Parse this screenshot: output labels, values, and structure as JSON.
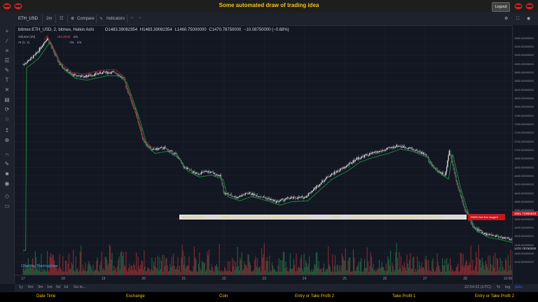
{
  "app": {
    "title": "Some automated draw of trading idea",
    "logout_label": "Logout"
  },
  "toolbar": {
    "symbol": "ETH_USD",
    "interval": "2m",
    "compare_label": "Compare",
    "indicators_label": "Indicators"
  },
  "legend": {
    "main": "bitmex:ETH_USD, 2, bitmex, Heikin Ashi",
    "open": "O1483.39082354",
    "high": "H1483.39082354",
    "low": "L1460.75000000",
    "close": "C1470.78750000",
    "change": "−10.08750000 (−0.68%)",
    "volume_label": "Volume (20)",
    "volume_value": "194.4030",
    "volume_na": "n/a",
    "ai_label": "AI (1, 1)",
    "ai_na1": "n/a",
    "ai_na2": "n/a"
  },
  "banner": {
    "seg1": "Wait till flip 1800 !",
    "seg2": "DRAW just when: price is above strong angle line and AI line is green",
    "seg3": "OR",
    "seg4": "draw shorts just when price still below strong angle line and AI line is red",
    "seg5": "THEN See the magic!!"
  },
  "price_axis": {
    "ticks": [
      "1960.00000000",
      "1940.00000000",
      "1920.00000000",
      "1900.00000000",
      "1880.00000000",
      "1860.00000000",
      "1840.00000000",
      "1820.00000000",
      "1800.00000000",
      "1780.00000000",
      "1760.00000000",
      "1740.00000000",
      "1720.00000000",
      "1700.00000000",
      "1680.00000000",
      "1660.00000000",
      "1640.00000000",
      "1620.00000000",
      "1600.00000000",
      "1580.00000000",
      "1560.00000000",
      "1540.00000000",
      "1520.00000000",
      "1500.00000000",
      "1480.00000000",
      "1460.00000000",
      "1440.00000000"
    ],
    "banner_price": "1551.71984848",
    "current_price": "1470.78750000"
  },
  "time_axis": {
    "labels": [
      "17",
      "18",
      "19",
      "20",
      "21",
      "22",
      "23",
      "24",
      "25",
      "26",
      "27",
      "28",
      "10:00"
    ]
  },
  "bottom": {
    "ranges": [
      "1y",
      "6m",
      "3m",
      "1m",
      "5d",
      "1d",
      "Go to..."
    ],
    "clock": "22:54:32 (UTC)",
    "pct": "%",
    "log": "log",
    "auto": "auto"
  },
  "watermark": "Chart by TradingView",
  "footer": {
    "items": [
      "Date Time",
      "Exchange",
      "Coin",
      "Entry or Take Profit 2",
      "Take Profit 1",
      "Entry or Take Profit 2"
    ]
  },
  "chart_data": {
    "type": "candlestick",
    "title": "",
    "ylim": [
      1430,
      1980
    ],
    "x_labels": [
      "17",
      "18",
      "19",
      "20",
      "21",
      "22",
      "23",
      "24",
      "25",
      "26",
      "27",
      "28",
      "10:00"
    ],
    "close_path": [
      [
        0,
        1898
      ],
      [
        0.3,
        1920
      ],
      [
        0.6,
        1960
      ],
      [
        0.9,
        1900
      ],
      [
        1.2,
        1875
      ],
      [
        1.5,
        1870
      ],
      [
        2.0,
        1880
      ],
      [
        2.3,
        1880
      ],
      [
        2.5,
        1865
      ],
      [
        2.8,
        1785
      ],
      [
        3.0,
        1720
      ],
      [
        3.2,
        1700
      ],
      [
        3.5,
        1705
      ],
      [
        3.8,
        1690
      ],
      [
        4.0,
        1660
      ],
      [
        4.3,
        1645
      ],
      [
        4.6,
        1650
      ],
      [
        4.9,
        1640
      ],
      [
        5.0,
        1600
      ],
      [
        5.3,
        1590
      ],
      [
        5.6,
        1600
      ],
      [
        6.0,
        1590
      ],
      [
        6.3,
        1580
      ],
      [
        6.6,
        1588
      ],
      [
        7.0,
        1590
      ],
      [
        7.3,
        1615
      ],
      [
        7.6,
        1640
      ],
      [
        8.0,
        1660
      ],
      [
        8.3,
        1680
      ],
      [
        8.6,
        1690
      ],
      [
        9.0,
        1700
      ],
      [
        9.3,
        1710
      ],
      [
        9.6,
        1705
      ],
      [
        10.0,
        1690
      ],
      [
        10.2,
        1660
      ],
      [
        10.5,
        1640
      ],
      [
        10.6,
        1700
      ],
      [
        10.8,
        1620
      ],
      [
        11.0,
        1560
      ],
      [
        11.2,
        1520
      ],
      [
        11.5,
        1505
      ],
      [
        11.8,
        1500
      ],
      [
        12.0,
        1495
      ],
      [
        12.3,
        1490
      ],
      [
        12.6,
        1488
      ],
      [
        12.9,
        1475
      ]
    ],
    "volume_note": "Volume histogram (20)",
    "annotation_price": 1551.72,
    "last_price": 1470.7875
  }
}
